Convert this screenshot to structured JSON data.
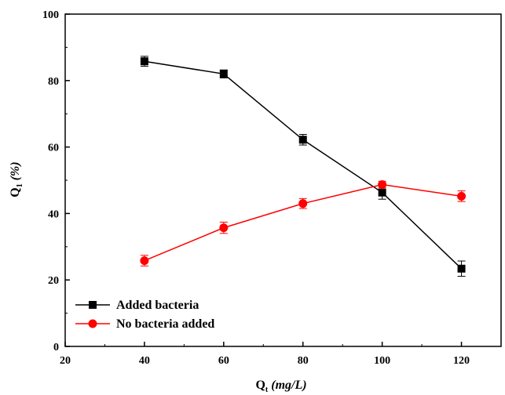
{
  "chart_data": {
    "type": "line",
    "x": [
      40,
      60,
      80,
      100,
      120
    ],
    "xlim": [
      20,
      130
    ],
    "ylim": [
      0,
      100
    ],
    "xticks": [
      "20",
      "40",
      "60",
      "80",
      "100",
      "120"
    ],
    "yticks": [
      "0",
      "20",
      "40",
      "60",
      "80",
      "100"
    ],
    "xlabel": {
      "main": "Q",
      "sub": "t",
      "unit": " (mg/L)"
    },
    "ylabel": {
      "main": "Q",
      "sub": "1",
      "unit": " (%)"
    },
    "grid": false,
    "legend": "bottom-left",
    "series": [
      {
        "name": "Added bacteria",
        "color": "#000000",
        "marker": "square",
        "values": [
          85.8,
          82.0,
          62.2,
          46.3,
          23.4
        ],
        "errors": [
          1.5,
          1.2,
          1.6,
          2.0,
          2.3
        ]
      },
      {
        "name": "No bacteria added",
        "color": "#ff0000",
        "marker": "circle",
        "values": [
          25.8,
          35.7,
          43.0,
          48.7,
          45.2
        ],
        "errors": [
          1.6,
          1.7,
          1.5,
          1.0,
          1.6
        ]
      }
    ]
  }
}
